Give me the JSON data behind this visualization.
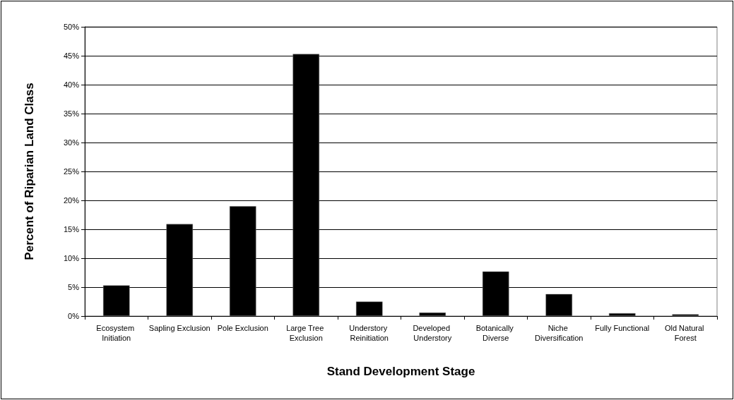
{
  "chart_data": {
    "type": "bar",
    "xlabel": "Stand Development Stage",
    "ylabel": "Percent of Riparian Land Class",
    "categories": [
      "Ecosystem Initiation",
      "Sapling Exclusion",
      "Pole Exclusion",
      "Large Tree Exclusion",
      "Understory Reinitiation",
      "Developed Understory",
      "Botanically Diverse",
      "Niche Diversification",
      "Fully Functional",
      "Old Natural Forest"
    ],
    "values": [
      5.3,
      15.9,
      19.0,
      45.3,
      2.5,
      0.6,
      7.7,
      3.8,
      0.5,
      0.3
    ],
    "color": "#000000",
    "ylim": [
      0,
      50
    ],
    "yticks": [
      {
        "value": 0,
        "label": "0%"
      },
      {
        "value": 5,
        "label": "5%"
      },
      {
        "value": 10,
        "label": "10%"
      },
      {
        "value": 15,
        "label": "15%"
      },
      {
        "value": 20,
        "label": "20%"
      },
      {
        "value": 25,
        "label": "25%"
      },
      {
        "value": 30,
        "label": "30%"
      },
      {
        "value": 35,
        "label": "35%"
      },
      {
        "value": 40,
        "label": "40%"
      },
      {
        "value": 45,
        "label": "45%"
      },
      {
        "value": 50,
        "label": "50%"
      }
    ],
    "grid": "y"
  }
}
